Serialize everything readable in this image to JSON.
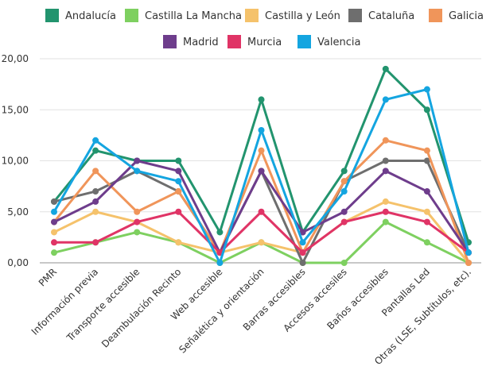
{
  "chart_data": {
    "type": "line",
    "title": "",
    "xlabel": "",
    "ylabel": "",
    "ylim": [
      0,
      20
    ],
    "yticks": [
      "0,00",
      "5,00",
      "10,00",
      "15,00",
      "20,00"
    ],
    "grid": true,
    "legend_position": "top",
    "categories": [
      "PMR",
      "Información previa",
      "Transporte accesible",
      "Deambulación Recinto",
      "Web accesible",
      "Señalética y orientación",
      "Barras accesibles",
      "Accesos accesiles",
      "Baños accesibles",
      "Pantallas Led",
      "Otras (LSE, Subtítulos, etc)."
    ],
    "series": [
      {
        "name": "Andalucía",
        "color": "#22946e",
        "values": [
          6,
          11,
          10,
          10,
          3,
          16,
          3,
          9,
          19,
          15,
          2
        ]
      },
      {
        "name": "Castilla La Mancha",
        "color": "#7ed060",
        "values": [
          1,
          2,
          3,
          2,
          0,
          2,
          0,
          0,
          4,
          2,
          0
        ]
      },
      {
        "name": "Castilla y León",
        "color": "#f5c26b",
        "values": [
          3,
          5,
          4,
          2,
          1,
          2,
          1,
          4,
          6,
          5,
          0
        ]
      },
      {
        "name": "Cataluña",
        "color": "#6e6e6e",
        "values": [
          6,
          7,
          9,
          7,
          1,
          9,
          0,
          8,
          10,
          10,
          1
        ]
      },
      {
        "name": "Galicia",
        "color": "#f0955a",
        "values": [
          4,
          9,
          5,
          7,
          1,
          11,
          1,
          8,
          12,
          11,
          0
        ]
      },
      {
        "name": "Madrid",
        "color": "#6e3d8c",
        "values": [
          4,
          6,
          10,
          9,
          1,
          9,
          3,
          5,
          9,
          7,
          1
        ]
      },
      {
        "name": "Murcia",
        "color": "#e03466",
        "values": [
          2,
          2,
          4,
          5,
          1,
          5,
          1,
          4,
          5,
          4,
          1
        ]
      },
      {
        "name": "Valencia",
        "color": "#14a5e0",
        "values": [
          5,
          12,
          9,
          8,
          0,
          13,
          2,
          7,
          16,
          17,
          1
        ]
      }
    ]
  }
}
